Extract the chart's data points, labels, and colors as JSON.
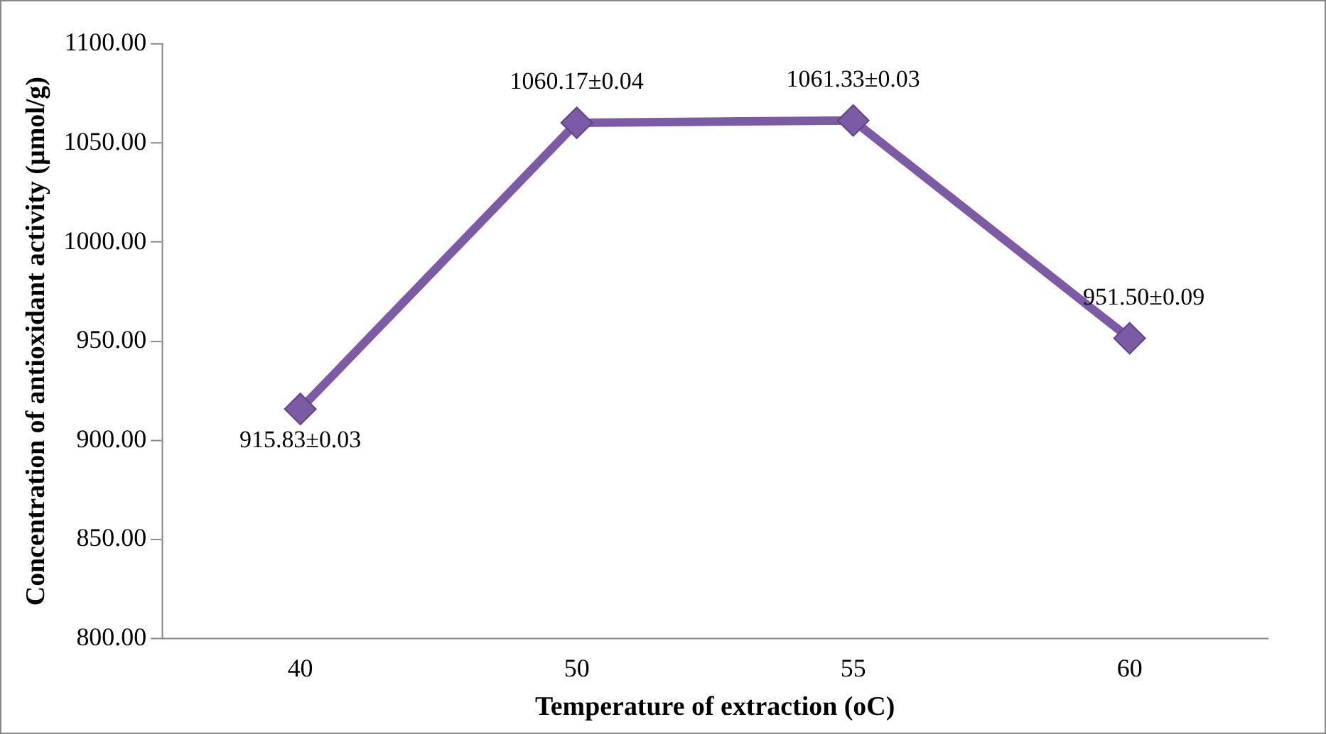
{
  "chart_data": {
    "type": "line",
    "xlabel": "Temperature of extraction (oC)",
    "ylabel": "Concentration of antioxidant activity (µmol/g)",
    "categories": [
      "40",
      "50",
      "55",
      "60"
    ],
    "series": [
      {
        "color": "#7b5aa6",
        "values": [
          915.83,
          1060.17,
          1061.33,
          951.5
        ],
        "value_labels": [
          "915.83±0.03",
          "1060.17±0.04",
          "1061.33±0.03",
          "951.50±0.09"
        ]
      }
    ],
    "ylim": [
      800,
      1100
    ],
    "yticks": [
      {
        "value": 800,
        "label": "800.00"
      },
      {
        "value": 850,
        "label": "850.00"
      },
      {
        "value": 900,
        "label": "900.00"
      },
      {
        "value": 950,
        "label": "950.00"
      },
      {
        "value": 1000,
        "label": "1000.00"
      },
      {
        "value": 1050,
        "label": "1050.00"
      },
      {
        "value": 1100,
        "label": "1100.00"
      }
    ],
    "grid": false,
    "legend": false,
    "marker": "diamond",
    "line_style": "solid"
  }
}
